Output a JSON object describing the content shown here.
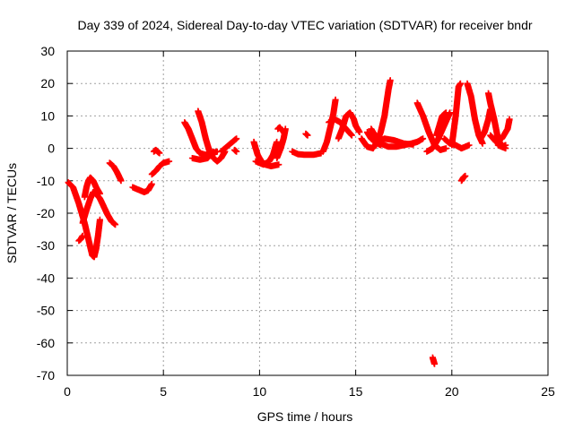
{
  "chart_data": {
    "type": "scatter",
    "title": "Day 339 of 2024, Sidereal Day-to-day VTEC variation (SDTVAR) for receiver bndr",
    "xlabel": "GPS time / hours",
    "ylabel": "SDTVAR / TECUs",
    "xlim": [
      0,
      25
    ],
    "ylim": [
      -70,
      30
    ],
    "xticks": [
      0,
      5,
      10,
      15,
      20,
      25
    ],
    "yticks": [
      -70,
      -60,
      -50,
      -40,
      -30,
      -20,
      -10,
      0,
      10,
      20,
      30
    ],
    "grid": true,
    "marker": "plus",
    "color": "#ff0000",
    "arcs": [
      [
        [
          0.05,
          -10.5
        ],
        [
          0.3,
          -12
        ],
        [
          0.6,
          -17
        ],
        [
          0.9,
          -23
        ],
        [
          1.1,
          -28
        ],
        [
          1.3,
          -33
        ],
        [
          1.4,
          -33.5
        ],
        [
          1.5,
          -31
        ],
        [
          1.6,
          -27
        ],
        [
          1.7,
          -22
        ]
      ],
      [
        [
          0.6,
          -28.5
        ],
        [
          0.7,
          -28
        ],
        [
          0.8,
          -27
        ]
      ],
      [
        [
          0.8,
          -23
        ],
        [
          1.0,
          -19
        ],
        [
          1.2,
          -15.5
        ],
        [
          1.35,
          -13.5
        ],
        [
          1.5,
          -14
        ],
        [
          1.7,
          -15.5
        ],
        [
          1.9,
          -18
        ],
        [
          2.1,
          -20.5
        ],
        [
          2.3,
          -22.5
        ],
        [
          2.5,
          -23.5
        ]
      ],
      [
        [
          0.9,
          -15
        ],
        [
          1.0,
          -12
        ],
        [
          1.1,
          -10
        ],
        [
          1.2,
          -9
        ],
        [
          1.35,
          -10
        ],
        [
          1.5,
          -12
        ],
        [
          1.7,
          -14
        ]
      ],
      [
        [
          2.2,
          -4.5
        ],
        [
          2.4,
          -5.5
        ],
        [
          2.6,
          -7.5
        ],
        [
          2.8,
          -10
        ]
      ],
      [
        [
          3.4,
          -12
        ],
        [
          3.6,
          -12.5
        ],
        [
          3.8,
          -13
        ],
        [
          4.0,
          -13.5
        ],
        [
          4.2,
          -13
        ],
        [
          4.4,
          -11
        ]
      ],
      [
        [
          4.5,
          -1
        ],
        [
          4.6,
          -0.5
        ],
        [
          4.7,
          -1
        ],
        [
          4.8,
          -1.5
        ]
      ],
      [
        [
          4.4,
          -8
        ],
        [
          4.6,
          -7
        ],
        [
          4.8,
          -5.5
        ],
        [
          5.0,
          -4.5
        ],
        [
          5.3,
          -4
        ]
      ],
      [
        [
          6.1,
          8
        ],
        [
          6.3,
          6
        ],
        [
          6.5,
          3
        ],
        [
          6.7,
          0
        ],
        [
          6.9,
          -1.5
        ],
        [
          7.2,
          -2
        ],
        [
          7.5,
          -1.5
        ],
        [
          7.8,
          -1
        ]
      ],
      [
        [
          6.8,
          11.5
        ],
        [
          7.0,
          8
        ],
        [
          7.2,
          3
        ],
        [
          7.4,
          -1
        ],
        [
          7.6,
          -3
        ],
        [
          7.8,
          -4
        ],
        [
          8.0,
          -3
        ],
        [
          8.2,
          -1
        ]
      ],
      [
        [
          6.5,
          -3
        ],
        [
          6.9,
          -3.5
        ],
        [
          7.3,
          -3
        ],
        [
          7.6,
          -1
        ]
      ],
      [
        [
          8.0,
          -1
        ],
        [
          8.3,
          0.5
        ],
        [
          8.6,
          2
        ],
        [
          8.8,
          3
        ]
      ],
      [
        [
          8.7,
          -0.5
        ],
        [
          8.8,
          -1
        ]
      ],
      [
        [
          9.7,
          2
        ],
        [
          9.9,
          -2
        ],
        [
          10.1,
          -4
        ],
        [
          10.3,
          -5
        ],
        [
          10.6,
          -5.5
        ],
        [
          11.0,
          -5
        ]
      ],
      [
        [
          9.8,
          -4
        ],
        [
          10.2,
          -5
        ],
        [
          10.5,
          -4
        ],
        [
          10.7,
          -2
        ],
        [
          10.8,
          0
        ],
        [
          10.9,
          2
        ]
      ],
      [
        [
          10.9,
          -3
        ],
        [
          11.1,
          0
        ],
        [
          11.25,
          3
        ],
        [
          11.35,
          6
        ]
      ],
      [
        [
          10.95,
          6
        ],
        [
          11.05,
          6.5
        ],
        [
          11.15,
          5.5
        ]
      ],
      [
        [
          11.7,
          -1
        ],
        [
          12.0,
          -1.8
        ],
        [
          12.4,
          -2
        ],
        [
          12.8,
          -2
        ],
        [
          13.2,
          -1.5
        ]
      ],
      [
        [
          12.4,
          4.5
        ],
        [
          12.5,
          4
        ]
      ],
      [
        [
          13.3,
          -1
        ],
        [
          13.5,
          2
        ],
        [
          13.7,
          7
        ],
        [
          13.85,
          11
        ],
        [
          13.95,
          15
        ]
      ],
      [
        [
          13.6,
          8
        ],
        [
          13.9,
          9
        ],
        [
          14.2,
          8
        ],
        [
          14.5,
          6
        ],
        [
          14.8,
          4
        ]
      ],
      [
        [
          14.1,
          3
        ],
        [
          14.3,
          6
        ],
        [
          14.5,
          10
        ],
        [
          14.7,
          11
        ],
        [
          14.9,
          9
        ],
        [
          15.0,
          7
        ],
        [
          15.2,
          5
        ]
      ],
      [
        [
          15.3,
          3
        ],
        [
          15.6,
          0.5
        ],
        [
          15.9,
          0
        ],
        [
          16.1,
          2
        ],
        [
          16.3,
          5
        ],
        [
          16.5,
          10
        ],
        [
          16.6,
          14
        ],
        [
          16.7,
          18
        ],
        [
          16.8,
          21
        ]
      ],
      [
        [
          15.6,
          5
        ],
        [
          15.8,
          3
        ],
        [
          16.0,
          2
        ],
        [
          16.3,
          1
        ]
      ],
      [
        [
          15.8,
          6
        ],
        [
          16.0,
          4
        ],
        [
          16.3,
          1.5
        ],
        [
          16.7,
          0.5
        ],
        [
          17.1,
          0.5
        ],
        [
          17.5,
          1
        ],
        [
          17.9,
          1.5
        ],
        [
          18.2,
          2
        ],
        [
          18.5,
          3
        ]
      ],
      [
        [
          16.1,
          2
        ],
        [
          16.5,
          3
        ],
        [
          17.0,
          2.5
        ],
        [
          17.5,
          1.5
        ],
        [
          18.0,
          1.2
        ]
      ],
      [
        [
          18.2,
          14
        ],
        [
          18.5,
          10
        ],
        [
          18.8,
          5
        ],
        [
          19.1,
          1
        ],
        [
          19.4,
          -0.5
        ],
        [
          19.7,
          0
        ]
      ],
      [
        [
          18.7,
          -1
        ],
        [
          19.0,
          0
        ],
        [
          19.3,
          3
        ],
        [
          19.6,
          7
        ],
        [
          19.9,
          11
        ]
      ],
      [
        [
          19.0,
          -64.5
        ],
        [
          19.05,
          -65.5
        ],
        [
          19.1,
          -66.5
        ]
      ],
      [
        [
          19.2,
          4
        ],
        [
          19.5,
          10
        ],
        [
          19.7,
          11
        ]
      ],
      [
        [
          19.6,
          3
        ],
        [
          19.9,
          1.5
        ],
        [
          20.2,
          1
        ],
        [
          20.5,
          0
        ],
        [
          20.9,
          1
        ]
      ],
      [
        [
          20.0,
          1
        ],
        [
          20.2,
          10
        ],
        [
          20.35,
          19
        ],
        [
          20.45,
          20
        ]
      ],
      [
        [
          20.5,
          -10
        ],
        [
          20.6,
          -9
        ],
        [
          20.7,
          -8.5
        ]
      ],
      [
        [
          20.8,
          20
        ],
        [
          21.0,
          16
        ],
        [
          21.2,
          9
        ],
        [
          21.4,
          4
        ],
        [
          21.6,
          1.5
        ]
      ],
      [
        [
          21.5,
          3
        ],
        [
          21.7,
          5
        ],
        [
          21.9,
          9
        ],
        [
          22.0,
          12
        ]
      ],
      [
        [
          21.9,
          17
        ],
        [
          22.0,
          14
        ],
        [
          22.2,
          9
        ],
        [
          22.4,
          3
        ],
        [
          22.6,
          0.5
        ],
        [
          22.8,
          0
        ]
      ],
      [
        [
          22.0,
          4
        ],
        [
          22.3,
          2
        ],
        [
          22.6,
          3
        ],
        [
          22.9,
          6
        ],
        [
          23.0,
          9
        ]
      ],
      [
        [
          22.4,
          1
        ],
        [
          22.6,
          0.5
        ],
        [
          22.8,
          1
        ]
      ]
    ]
  }
}
